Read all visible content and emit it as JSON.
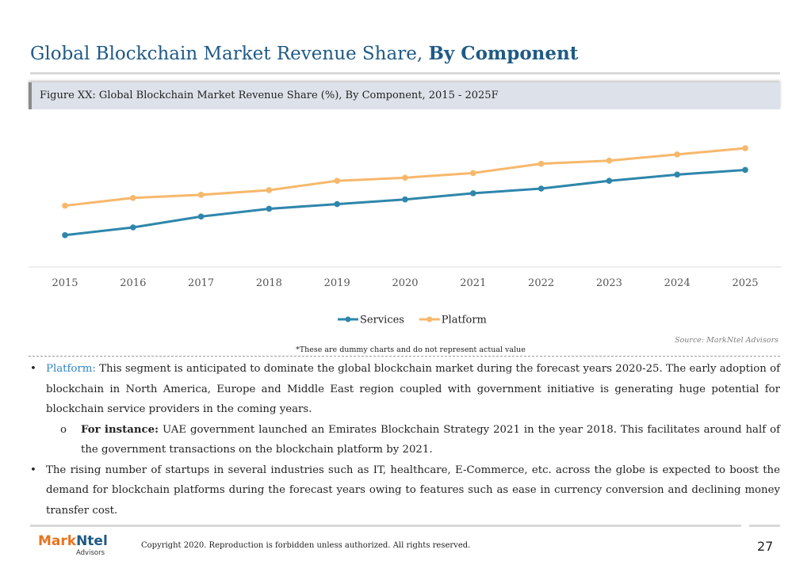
{
  "header": {
    "title_regular": "Global Blockchain Market Revenue Share, ",
    "title_bold": "By Component",
    "figure_caption": "Figure XX: Global Blockchain Market Revenue Share (%), By Component, 2015 - 2025F"
  },
  "chart_data": {
    "type": "line",
    "title": "",
    "xlabel": "",
    "ylabel": "",
    "categories": [
      "2015",
      "2016",
      "2017",
      "2018",
      "2019",
      "2020",
      "2021",
      "2022",
      "2023",
      "2024",
      "2025"
    ],
    "series": [
      {
        "name": "Services",
        "color": "#2e86ab",
        "values": [
          20,
          25,
          32,
          37,
          40,
          43,
          47,
          50,
          55,
          59,
          62
        ]
      },
      {
        "name": "Platform",
        "color": "#f6b86b",
        "values": [
          39,
          44,
          46,
          49,
          55,
          57,
          60,
          66,
          68,
          72,
          76
        ]
      }
    ],
    "ylim": [
      0,
      100
    ],
    "grid": false,
    "legend": "bottom-center"
  },
  "notes": {
    "source": "Source: MarkNtel Advisors",
    "disclaimer": "*These are dummy charts and do not represent actual value"
  },
  "content": {
    "bullet1_label": "Platform:",
    "bullet1_text": " This segment is anticipated to dominate the global blockchain market during the forecast years 2020-25. The early adoption of blockchain in North America, Europe and Middle East region coupled with government initiative is generating huge potential for blockchain service providers in the coming years.",
    "sub1_label": "For instance:",
    "sub1_text": " UAE government launched an Emirates Blockchain Strategy 2021 in the year 2018. This facilitates around half of the government transactions on the blockchain platform by 2021.",
    "bullet2_text": "The rising number of startups in several industries such as IT, healthcare, E-Commerce, etc. across the globe is expected to boost the demand for blockchain platforms during the forecast years owing to features such as ease in currency conversion and declining money transfer cost.",
    "bullet_glyph": "•",
    "sub_glyph": "o"
  },
  "footer": {
    "logo_mark": "Mark",
    "logo_ntel": "Ntel",
    "logo_advisors": "Advisors",
    "copyright": "Copyright 2020. Reproduction is forbidden unless authorized. All rights reserved.",
    "page_number": "27"
  }
}
